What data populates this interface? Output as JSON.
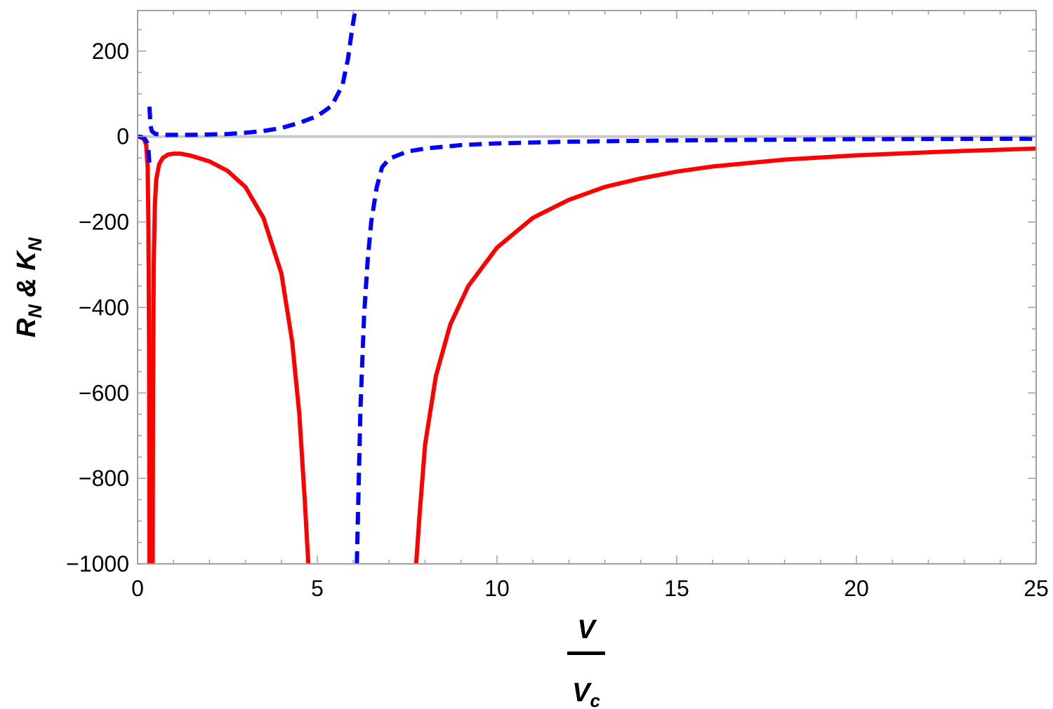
{
  "chart_data": {
    "type": "line",
    "title": "",
    "xlabel": {
      "numerator": "V",
      "denominator": "V",
      "denominator_sub": "c"
    },
    "ylabel": {
      "r": "R",
      "r_sub": "N",
      "amp": " & ",
      "k": "K",
      "k_sub": "N"
    },
    "xlim": [
      0,
      25
    ],
    "ylim": [
      -1000,
      295
    ],
    "x_ticks": [
      0,
      5,
      10,
      15,
      20,
      25
    ],
    "y_ticks": [
      -1000,
      -800,
      -600,
      -400,
      -200,
      0,
      200
    ],
    "x_tick_labels": [
      "0",
      "5",
      "10",
      "15",
      "20",
      "25"
    ],
    "y_tick_labels": [
      "−1000",
      "−800",
      "−600",
      "−400",
      "−200",
      "0",
      "200"
    ],
    "zero_line": true,
    "grid": false,
    "colors": {
      "solid": "#ff0000",
      "dashed": "#0000ff",
      "zero_line": "#c8c8c8",
      "frame": "#a0a0a0"
    },
    "series": [
      {
        "style": "solid",
        "color": "#ff0000",
        "segments": [
          [
            [
              0.0,
              0
            ],
            [
              0.1,
              -2
            ],
            [
              0.18,
              -6
            ],
            [
              0.24,
              -20
            ],
            [
              0.28,
              -70
            ],
            [
              0.3,
              -200
            ],
            [
              0.32,
              -500
            ],
            [
              0.33,
              -1000
            ]
          ],
          [
            [
              0.42,
              -1000
            ],
            [
              0.43,
              -600
            ],
            [
              0.45,
              -300
            ],
            [
              0.48,
              -160
            ],
            [
              0.52,
              -100
            ],
            [
              0.6,
              -65
            ],
            [
              0.7,
              -50
            ],
            [
              0.85,
              -42
            ],
            [
              1.0,
              -40
            ],
            [
              1.2,
              -40
            ],
            [
              1.5,
              -45
            ],
            [
              2.0,
              -58
            ],
            [
              2.5,
              -80
            ],
            [
              3.0,
              -118
            ],
            [
              3.5,
              -190
            ],
            [
              4.0,
              -320
            ],
            [
              4.3,
              -480
            ],
            [
              4.5,
              -650
            ],
            [
              4.65,
              -850
            ],
            [
              4.75,
              -1000
            ]
          ],
          [
            [
              7.75,
              -1000
            ],
            [
              7.85,
              -880
            ],
            [
              8.0,
              -720
            ],
            [
              8.3,
              -560
            ],
            [
              8.7,
              -440
            ],
            [
              9.2,
              -350
            ],
            [
              10.0,
              -260
            ],
            [
              11.0,
              -190
            ],
            [
              12.0,
              -148
            ],
            [
              13.0,
              -118
            ],
            [
              14.0,
              -98
            ],
            [
              15.0,
              -82
            ],
            [
              16.0,
              -70
            ],
            [
              18.0,
              -54
            ],
            [
              20.0,
              -44
            ],
            [
              22.5,
              -35
            ],
            [
              25.0,
              -28
            ]
          ]
        ]
      },
      {
        "style": "dashed",
        "color": "#0000ff",
        "segments": [
          [
            [
              0.0,
              0
            ],
            [
              0.1,
              -1
            ],
            [
              0.2,
              -5
            ],
            [
              0.27,
              -15
            ],
            [
              0.3,
              -30
            ],
            [
              0.33,
              -65
            ]
          ],
          [
            [
              0.33,
              70
            ],
            [
              0.36,
              25
            ],
            [
              0.4,
              12
            ],
            [
              0.5,
              6
            ],
            [
              0.8,
              4
            ],
            [
              1.5,
              4
            ],
            [
              2.5,
              6
            ],
            [
              3.0,
              9
            ],
            [
              3.5,
              13
            ],
            [
              4.0,
              20
            ],
            [
              4.5,
              32
            ],
            [
              5.0,
              48
            ],
            [
              5.4,
              72
            ],
            [
              5.7,
              120
            ],
            [
              5.85,
              180
            ],
            [
              5.95,
              240
            ],
            [
              6.05,
              295
            ]
          ],
          [
            [
              6.1,
              -1000
            ],
            [
              6.2,
              -640
            ],
            [
              6.3,
              -420
            ],
            [
              6.4,
              -290
            ],
            [
              6.5,
              -200
            ],
            [
              6.65,
              -120
            ],
            [
              6.8,
              -72
            ],
            [
              7.0,
              -52
            ],
            [
              7.5,
              -35
            ],
            [
              8.0,
              -28
            ],
            [
              9.0,
              -20
            ],
            [
              10.0,
              -16
            ],
            [
              12.0,
              -12
            ],
            [
              15.0,
              -9
            ],
            [
              20.0,
              -6
            ],
            [
              25.0,
              -5
            ]
          ]
        ]
      }
    ]
  }
}
